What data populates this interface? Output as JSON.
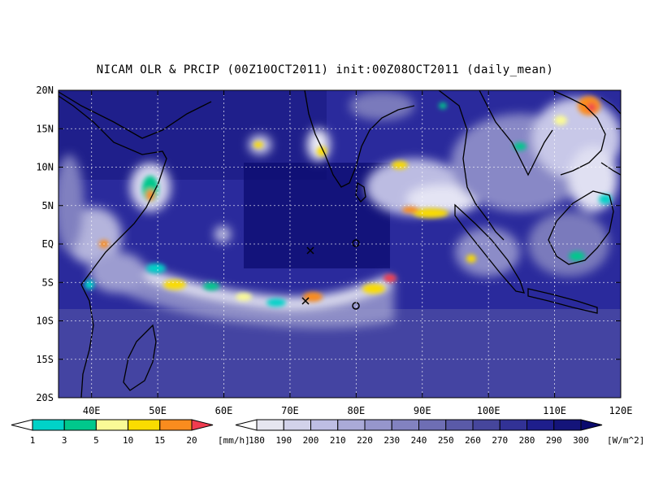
{
  "title": "NICAM OLR & PRCIP (00Z10OCT2011) init:00Z08OCT2011 (daily_mean)",
  "chart_data": {
    "type": "heatmap",
    "title": "NICAM OLR & PRCIP (00Z10OCT2011) init:00Z08OCT2011 (daily_mean)",
    "x_ticks": [
      "40E",
      "50E",
      "60E",
      "70E",
      "80E",
      "90E",
      "100E",
      "110E",
      "120E"
    ],
    "x_tick_values": [
      40,
      50,
      60,
      70,
      80,
      90,
      100,
      110,
      120
    ],
    "y_ticks": [
      "20N",
      "15N",
      "10N",
      "5N",
      "EQ",
      "5S",
      "10S",
      "15S",
      "20S"
    ],
    "y_tick_values": [
      20,
      15,
      10,
      5,
      0,
      -5,
      -10,
      -15,
      -20
    ],
    "xlim": [
      35,
      120
    ],
    "ylim": [
      -20,
      20
    ],
    "grid": true,
    "markers": [
      {
        "symbol": "x",
        "lon": 73,
        "lat": -0.5
      },
      {
        "symbol": "o",
        "lon": 80,
        "lat": 0.5
      },
      {
        "symbol": "x",
        "lon": 73,
        "lat": -8
      },
      {
        "symbol": "o",
        "lon": 80,
        "lat": -8.5
      }
    ],
    "precip_colorbar": {
      "unit": "[mm/h]",
      "labels": [
        "1",
        "3",
        "5",
        "10",
        "15",
        "20"
      ],
      "colors": [
        "#ffffff",
        "#00d2c8",
        "#00c88c",
        "#fafa96",
        "#fadc00",
        "#fa8c1e",
        "#f03c50"
      ]
    },
    "olr_colorbar": {
      "unit": "[W/m^2]",
      "labels": [
        "180",
        "190",
        "200",
        "210",
        "220",
        "230",
        "240",
        "250",
        "260",
        "270",
        "280",
        "290",
        "300"
      ],
      "colors": [
        "#ffffff",
        "#e6e6f0",
        "#d2d2ea",
        "#bebee4",
        "#aaaad8",
        "#9696cc",
        "#8282c0",
        "#6e6eb4",
        "#5a5aa8",
        "#46469c",
        "#323296",
        "#1e1e8c",
        "#14147a",
        "#0a0a6e"
      ]
    }
  }
}
